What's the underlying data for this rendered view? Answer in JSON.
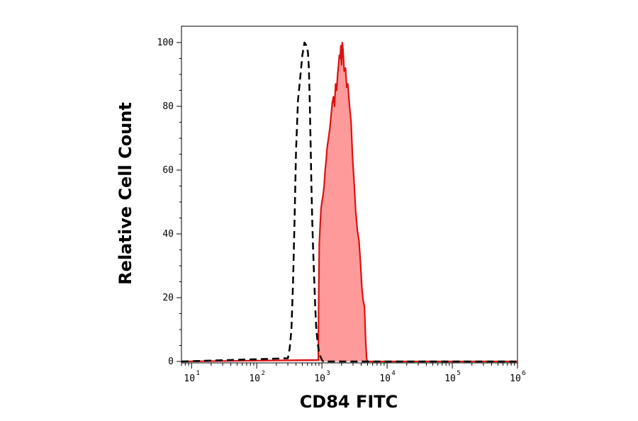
{
  "chart_data": {
    "type": "area",
    "title": "",
    "xlabel": "CD84 FITC",
    "ylabel": "Relative Cell Count",
    "x_scale": "log",
    "xlim": [
      7,
      1000000
    ],
    "ylim": [
      0,
      100
    ],
    "x_ticks": [
      {
        "value": 10,
        "base": "10",
        "exp": "1"
      },
      {
        "value": 100,
        "base": "10",
        "exp": "2"
      },
      {
        "value": 1000,
        "base": "10",
        "exp": "3"
      },
      {
        "value": 10000,
        "base": "10",
        "exp": "4"
      },
      {
        "value": 100000,
        "base": "10",
        "exp": "5"
      },
      {
        "value": 1000000,
        "base": "10",
        "exp": "6"
      }
    ],
    "y_ticks": [
      {
        "value": 0,
        "label": "0"
      },
      {
        "value": 20,
        "label": "20"
      },
      {
        "value": 40,
        "label": "40"
      },
      {
        "value": 60,
        "label": "60"
      },
      {
        "value": 80,
        "label": "80"
      },
      {
        "value": 100,
        "label": "100"
      }
    ],
    "grid": false,
    "legend": "none",
    "series": [
      {
        "style": "dashed",
        "color": "#000000",
        "fill": "none",
        "x": [
          7,
          300,
          320,
          340,
          360,
          380,
          400,
          430,
          460,
          500,
          540,
          580,
          610,
          630,
          650,
          670,
          690,
          710,
          730,
          760,
          790,
          820,
          860,
          900,
          950,
          1000,
          1050,
          1080,
          1100,
          1120,
          1000000
        ],
        "y": [
          0,
          1,
          4,
          10,
          24,
          44,
          66,
          82,
          88,
          96,
          100,
          99,
          97,
          92,
          82,
          68,
          55,
          44,
          36,
          26,
          17,
          10,
          6,
          3,
          1.5,
          0.5,
          0,
          0,
          0,
          0,
          0
        ]
      },
      {
        "style": "solid",
        "color": "#dd1111",
        "fill": "#ff9a9a",
        "x": [
          7,
          880,
          890,
          910,
          940,
          970,
          1000,
          1040,
          1080,
          1120,
          1160,
          1200,
          1260,
          1320,
          1380,
          1440,
          1500,
          1560,
          1620,
          1680,
          1740,
          1800,
          1850,
          1900,
          1950,
          2000,
          2050,
          2100,
          2200,
          2300,
          2400,
          2500,
          2650,
          2800,
          2950,
          3100,
          3300,
          3500,
          3700,
          3900,
          4100,
          4300,
          4500,
          4700,
          4850,
          4950,
          1000000
        ],
        "y": [
          0,
          0.5,
          18,
          37,
          43,
          48,
          50,
          52,
          55,
          60,
          63,
          67,
          70,
          73,
          77,
          81,
          83,
          80,
          87,
          85,
          90,
          93,
          96,
          95,
          99,
          93,
          100,
          98,
          91,
          92,
          86,
          87,
          80,
          75,
          64,
          57,
          47,
          41,
          38,
          31,
          23,
          19,
          17,
          6,
          1,
          0,
          0
        ]
      }
    ]
  }
}
